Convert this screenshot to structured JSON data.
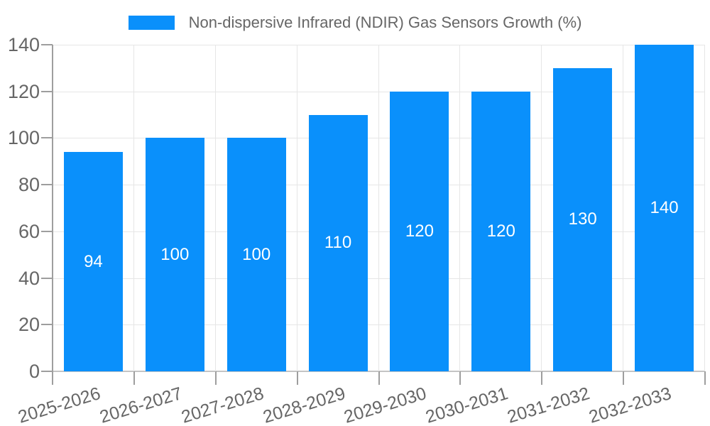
{
  "chart_data": {
    "type": "bar",
    "title": "Non-dispersive Infrared (NDIR) Gas Sensors Growth (%)",
    "categories": [
      "2025-2026",
      "2026-2027",
      "2027-2028",
      "2028-2029",
      "2029-2030",
      "2030-2031",
      "2031-2032",
      "2032-2033"
    ],
    "values": [
      94,
      100,
      100,
      110,
      120,
      120,
      130,
      140
    ],
    "bar_value_labels": [
      "94",
      "100",
      "100",
      "110",
      "120",
      "120",
      "130",
      "140"
    ],
    "ylim": [
      0,
      140
    ],
    "yticks": [
      0,
      20,
      40,
      60,
      80,
      100,
      120,
      140
    ],
    "xlabel": "",
    "ylabel": "",
    "grid": true,
    "legend_position": "top",
    "colors": {
      "bar": "#0a90fb",
      "bar_label_text": "#ffffff",
      "axis_text": "#666666",
      "gridline": "#e6e6e6",
      "baseline": "#c4c4c4",
      "axis_line": "#9e9e9e",
      "background": "#ffffff"
    }
  }
}
